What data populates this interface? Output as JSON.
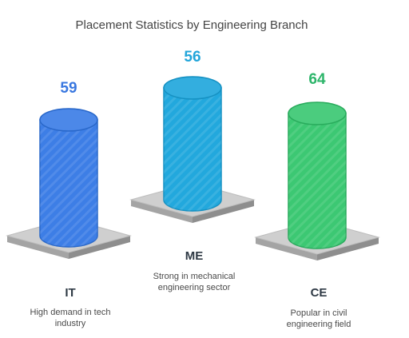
{
  "chart_data": {
    "type": "bar",
    "title": "Placement Statistics by Engineering Branch",
    "categories": [
      "IT",
      "ME",
      "CE"
    ],
    "values": [
      59,
      56,
      64
    ],
    "descriptions": [
      [
        "High demand in tech",
        "industry"
      ],
      [
        "Strong in mechanical",
        "engineering sector"
      ],
      [
        "Popular in civil",
        "engineering field"
      ]
    ],
    "colors": [
      "#3d7ee6",
      "#22a8dd",
      "#3cc873"
    ],
    "stroke_colors": [
      "#2a68c9",
      "#1791c2",
      "#2aab5d"
    ],
    "label_colors": [
      "#3a78e0",
      "#22a5da",
      "#2db56a"
    ],
    "platform_colors": {
      "top": "#cfcfcf",
      "front": "#a4a4a4",
      "side": "#8e8e8e"
    },
    "grid": false,
    "legend": "none"
  }
}
